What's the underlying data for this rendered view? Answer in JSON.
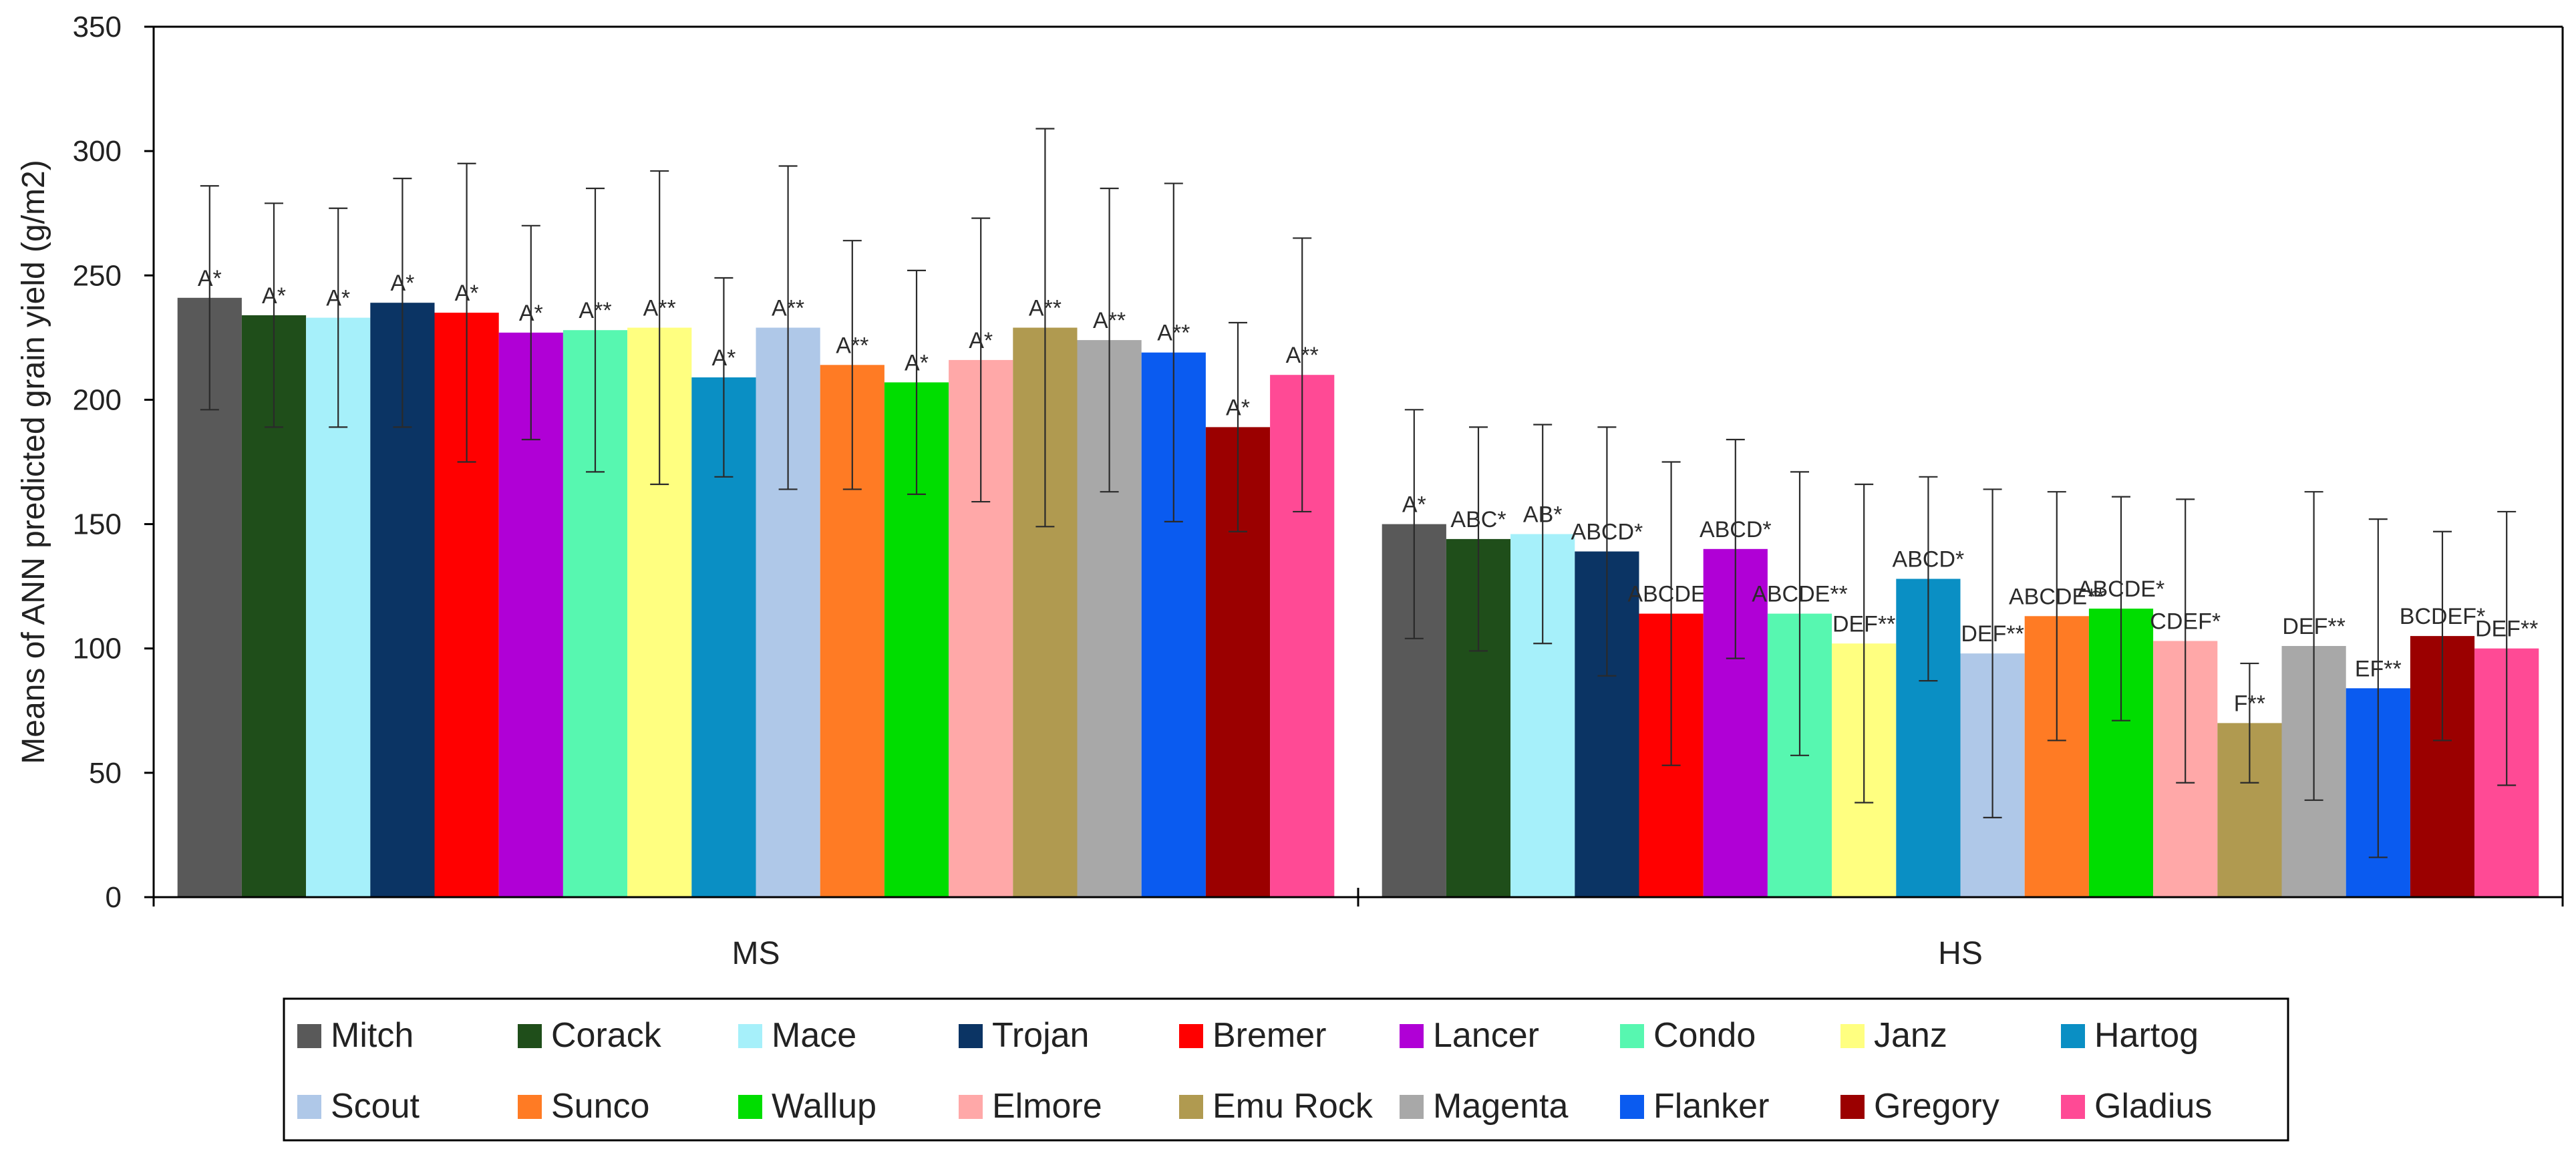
{
  "chart_data": {
    "type": "bar",
    "title": "",
    "xlabel": "",
    "ylabel": "Means of ANN predicted grain yield (g/m2)",
    "ylim": [
      0,
      350
    ],
    "yticks": [
      0,
      50,
      100,
      150,
      200,
      250,
      300,
      350
    ],
    "grid": false,
    "legend_position": "bottom",
    "groups": [
      "MS",
      "HS"
    ],
    "series": [
      {
        "name": "Mitch",
        "color": "#595959",
        "values": [
          241,
          150
        ],
        "errors": [
          45,
          46
        ],
        "labels": [
          "A*",
          "A*"
        ]
      },
      {
        "name": "Corack",
        "color": "#1f4e1a",
        "values": [
          234,
          144
        ],
        "errors": [
          45,
          45
        ],
        "labels": [
          "A*",
          "ABC*"
        ]
      },
      {
        "name": "Mace",
        "color": "#a6f0fa",
        "values": [
          233,
          146
        ],
        "errors": [
          44,
          44
        ],
        "labels": [
          "A*",
          "AB*"
        ]
      },
      {
        "name": "Trojan",
        "color": "#0b3464",
        "values": [
          239,
          139
        ],
        "errors": [
          50,
          50
        ],
        "labels": [
          "A*",
          "ABCD*"
        ]
      },
      {
        "name": "Bremer",
        "color": "#ff0000",
        "values": [
          235,
          114
        ],
        "errors": [
          60,
          61
        ],
        "labels": [
          "A*",
          "ABCDE*"
        ]
      },
      {
        "name": "Lancer",
        "color": "#b000d6",
        "values": [
          227,
          140
        ],
        "errors": [
          43,
          44
        ],
        "labels": [
          "A*",
          "ABCD*"
        ]
      },
      {
        "name": "Condo",
        "color": "#57f7b0",
        "values": [
          228,
          114
        ],
        "errors": [
          57,
          57
        ],
        "labels": [
          "A**",
          "ABCDE**"
        ]
      },
      {
        "name": "Janz",
        "color": "#ffff80",
        "values": [
          229,
          102
        ],
        "errors": [
          63,
          64
        ],
        "labels": [
          "A**",
          "DEF**"
        ]
      },
      {
        "name": "Hartog",
        "color": "#0a8fc4",
        "values": [
          209,
          128
        ],
        "errors": [
          40,
          41
        ],
        "labels": [
          "A*",
          "ABCD*"
        ]
      },
      {
        "name": "Scout",
        "color": "#afc8e8",
        "values": [
          229,
          98
        ],
        "errors": [
          65,
          66
        ],
        "labels": [
          "A**",
          "DEF**"
        ]
      },
      {
        "name": "Sunco",
        "color": "#ff7b24",
        "values": [
          214,
          113
        ],
        "errors": [
          50,
          50
        ],
        "labels": [
          "A**",
          "ABCDE**"
        ]
      },
      {
        "name": "Wallup",
        "color": "#00dd00",
        "values": [
          207,
          116
        ],
        "errors": [
          45,
          45
        ],
        "labels": [
          "A*",
          "ABCDE*"
        ]
      },
      {
        "name": "Elmore",
        "color": "#ffa8a8",
        "values": [
          216,
          103
        ],
        "errors": [
          57,
          57
        ],
        "labels": [
          "A*",
          "CDEF*"
        ]
      },
      {
        "name": "Emu Rock",
        "color": "#b09a50",
        "values": [
          229,
          70
        ],
        "errors": [
          80,
          24
        ],
        "labels": [
          "A**",
          "F**"
        ]
      },
      {
        "name": "Magenta",
        "color": "#a8a8a8",
        "values": [
          224,
          101
        ],
        "errors": [
          61,
          62
        ],
        "labels": [
          "A**",
          "DEF**"
        ]
      },
      {
        "name": "Flanker",
        "color": "#0a5bf0",
        "values": [
          219,
          84
        ],
        "errors": [
          68,
          68
        ],
        "labels": [
          "A**",
          "EF**"
        ]
      },
      {
        "name": "Gregory",
        "color": "#9b0000",
        "values": [
          189,
          105
        ],
        "errors": [
          42,
          42
        ],
        "labels": [
          "A*",
          "BCDEF*"
        ]
      },
      {
        "name": "Gladius",
        "color": "#ff4a95",
        "values": [
          210,
          100
        ],
        "errors": [
          55,
          55
        ],
        "labels": [
          "A**",
          "DEF**"
        ]
      }
    ]
  }
}
